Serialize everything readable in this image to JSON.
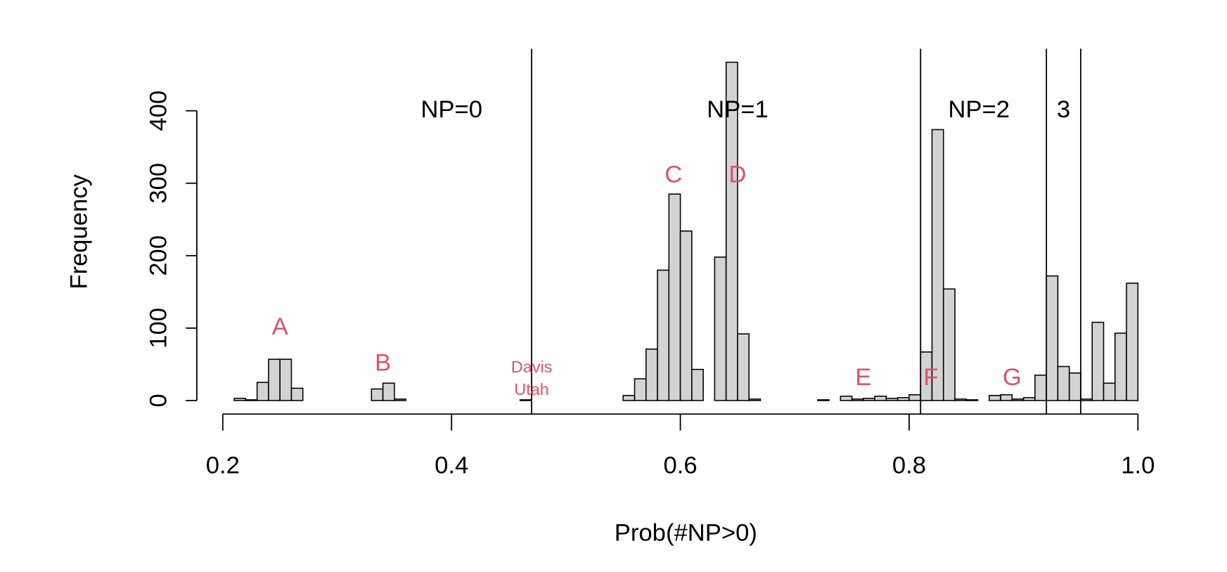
{
  "chart_data": {
    "type": "histogram",
    "xlabel": "Prob(#NP>0)",
    "ylabel": "Frequency",
    "bins": [
      0.21,
      0.22,
      0.23,
      0.24,
      0.25,
      0.26,
      0.27,
      0.28,
      0.29,
      0.3,
      0.31,
      0.32,
      0.33,
      0.34,
      0.35,
      0.36,
      0.37,
      0.38,
      0.39,
      0.4,
      0.41,
      0.42,
      0.43,
      0.44,
      0.45,
      0.46,
      0.47,
      0.48,
      0.49,
      0.5,
      0.51,
      0.52,
      0.53,
      0.54,
      0.55,
      0.56,
      0.57,
      0.58,
      0.59,
      0.6,
      0.61,
      0.62,
      0.63,
      0.64,
      0.65,
      0.66,
      0.67,
      0.68,
      0.69,
      0.7,
      0.71,
      0.72,
      0.73,
      0.74,
      0.75,
      0.76,
      0.77,
      0.78,
      0.79,
      0.8,
      0.81,
      0.82,
      0.83,
      0.84,
      0.85,
      0.86,
      0.87,
      0.88,
      0.89,
      0.9,
      0.91,
      0.92,
      0.93,
      0.94,
      0.95,
      0.96,
      0.97,
      0.98,
      0.99,
      1.0
    ],
    "values": [
      3,
      1,
      25,
      57,
      57,
      17,
      0,
      0,
      0,
      0,
      0,
      0,
      16,
      24,
      2,
      0,
      0,
      0,
      0,
      0,
      0,
      0,
      0,
      0,
      0,
      1,
      0,
      0,
      0,
      0,
      0,
      0,
      0,
      0,
      7,
      30,
      71,
      180,
      285,
      234,
      43,
      0,
      198,
      467,
      92,
      2,
      0,
      0,
      0,
      0,
      0,
      1,
      0,
      6,
      2,
      3,
      6,
      3,
      4,
      8,
      67,
      374,
      154,
      2,
      1,
      0,
      7,
      8,
      2,
      4,
      35,
      172,
      47,
      38,
      2,
      108,
      24,
      93,
      162
    ],
    "color": "#d3d3d3",
    "xlim": [
      0.21,
      1.0
    ],
    "ylim": [
      0,
      467
    ],
    "xticks": [
      0.2,
      0.4,
      0.6,
      0.8,
      {
        "value": 1.0,
        "label": "1.0"
      }
    ],
    "yticks": [
      0,
      100,
      200,
      300,
      400
    ],
    "vlines": [
      0.47,
      0.81,
      0.92,
      0.95
    ],
    "region_labels": [
      {
        "text": "NP=0",
        "x": 0.4,
        "y": 400
      },
      {
        "text": "NP=1",
        "x": 0.65,
        "y": 400
      },
      {
        "text": "NP=2",
        "x": 0.861,
        "y": 400
      },
      {
        "text": "3",
        "x": 0.935,
        "y": 400
      }
    ],
    "annotations_color": "#df536b",
    "annotations": [
      {
        "text": "A",
        "x": 0.25,
        "y": 100
      },
      {
        "text": "B",
        "x": 0.34,
        "y": 50
      },
      {
        "text": "Davis",
        "x": 0.47,
        "y": 45
      },
      {
        "text": "Utah",
        "x": 0.47,
        "y": 14
      },
      {
        "text": "C",
        "x": 0.594,
        "y": 310
      },
      {
        "text": "D",
        "x": 0.65,
        "y": 310
      },
      {
        "text": "E",
        "x": 0.76,
        "y": 30
      },
      {
        "text": "F",
        "x": 0.819,
        "y": 30
      },
      {
        "text": "G",
        "x": 0.89,
        "y": 30
      }
    ]
  }
}
